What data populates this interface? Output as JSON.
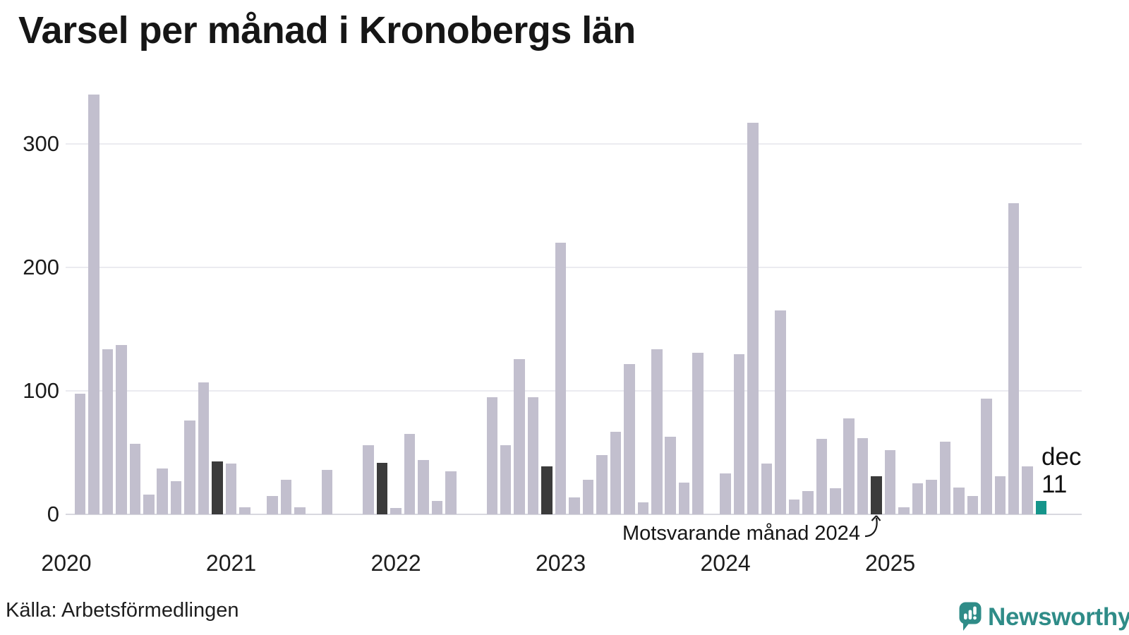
{
  "title": "Varsel per månad i Kronobergs län",
  "footer": {
    "source": "Källa: Arbetsförmedlingen",
    "logo_text": "Newsworthy"
  },
  "annotations": {
    "comparison_label": "Motsvarande månad 2024",
    "latest_label_month": "dec",
    "latest_label_value": "11"
  },
  "colors": {
    "bar_default": "#c2bfce",
    "bar_december": "#3b3b3b",
    "bar_latest": "#15958b",
    "logo_teal": "#2f8c88",
    "gridline": "#ebebf0",
    "axis_line": "#d8d8df",
    "text": "#1a1a1a"
  },
  "chart_data": {
    "type": "bar",
    "title": "Varsel per månad i Kronobergs län",
    "source": "Källa: Arbetsförmedlingen",
    "ylabel": "",
    "xlabel": "",
    "ylim": [
      0,
      345
    ],
    "yticks": [
      0,
      100,
      200,
      300
    ],
    "xticks": [
      "2020",
      "2021",
      "2022",
      "2023",
      "2024",
      "2025"
    ],
    "grid": true,
    "legend": false,
    "dark_months": [
      "dec 2020",
      "dec 2021",
      "dec 2022",
      "dec 2023",
      "dec 2024"
    ],
    "highlight_month": "dec 2025",
    "months": [
      "jan 2020",
      "feb 2020",
      "mar 2020",
      "apr 2020",
      "maj 2020",
      "jun 2020",
      "jul 2020",
      "aug 2020",
      "sep 2020",
      "okt 2020",
      "nov 2020",
      "dec 2020",
      "jan 2021",
      "feb 2021",
      "mar 2021",
      "apr 2021",
      "maj 2021",
      "jun 2021",
      "jul 2021",
      "aug 2021",
      "sep 2021",
      "okt 2021",
      "nov 2021",
      "dec 2021",
      "jan 2022",
      "feb 2022",
      "mar 2022",
      "apr 2022",
      "maj 2022",
      "jun 2022",
      "jul 2022",
      "aug 2022",
      "sep 2022",
      "okt 2022",
      "nov 2022",
      "dec 2022",
      "jan 2023",
      "feb 2023",
      "mar 2023",
      "apr 2023",
      "maj 2023",
      "jun 2023",
      "jul 2023",
      "aug 2023",
      "sep 2023",
      "okt 2023",
      "nov 2023",
      "dec 2023",
      "jan 2024",
      "feb 2024",
      "mar 2024",
      "apr 2024",
      "maj 2024",
      "jun 2024",
      "jul 2024",
      "aug 2024",
      "sep 2024",
      "okt 2024",
      "nov 2024",
      "dec 2024",
      "jan 2025",
      "feb 2025",
      "mar 2025",
      "apr 2025",
      "maj 2025",
      "jun 2025",
      "jul 2025",
      "aug 2025",
      "sep 2025",
      "okt 2025",
      "nov 2025",
      "dec 2025"
    ],
    "values": [
      0,
      98,
      340,
      134,
      137,
      57,
      16,
      37,
      27,
      76,
      107,
      43,
      41,
      6,
      0,
      15,
      28,
      6,
      0,
      36,
      0,
      0,
      56,
      42,
      5,
      65,
      44,
      11,
      35,
      0,
      0,
      95,
      56,
      126,
      95,
      39,
      220,
      14,
      28,
      48,
      67,
      122,
      10,
      134,
      63,
      26,
      131,
      0,
      33,
      130,
      317,
      41,
      165,
      12,
      19,
      61,
      21,
      78,
      62,
      31,
      52,
      6,
      25,
      28,
      59,
      22,
      15,
      94,
      31,
      252,
      39,
      11
    ]
  }
}
